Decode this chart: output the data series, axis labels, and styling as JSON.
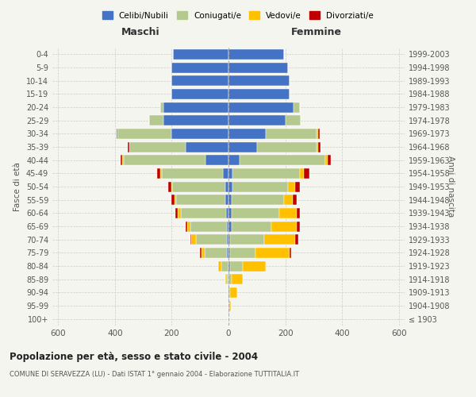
{
  "age_groups": [
    "100+",
    "95-99",
    "90-94",
    "85-89",
    "80-84",
    "75-79",
    "70-74",
    "65-69",
    "60-64",
    "55-59",
    "50-54",
    "45-49",
    "40-44",
    "35-39",
    "30-34",
    "25-29",
    "20-24",
    "15-19",
    "10-14",
    "5-9",
    "0-4"
  ],
  "birth_years": [
    "≤ 1903",
    "1904-1908",
    "1909-1913",
    "1914-1918",
    "1919-1923",
    "1924-1928",
    "1929-1933",
    "1934-1938",
    "1939-1943",
    "1944-1948",
    "1949-1953",
    "1954-1958",
    "1959-1963",
    "1964-1968",
    "1969-1973",
    "1974-1978",
    "1979-1983",
    "1984-1988",
    "1989-1993",
    "1994-1998",
    "1999-2003"
  ],
  "males": {
    "single": [
      0,
      0,
      0,
      0,
      0,
      5,
      5,
      5,
      8,
      10,
      12,
      20,
      80,
      150,
      200,
      230,
      230,
      200,
      200,
      200,
      195
    ],
    "married": [
      0,
      0,
      3,
      5,
      25,
      80,
      110,
      130,
      160,
      175,
      185,
      215,
      290,
      200,
      190,
      50,
      10,
      0,
      0,
      0,
      0
    ],
    "widowed": [
      0,
      0,
      0,
      5,
      10,
      10,
      15,
      10,
      10,
      5,
      5,
      5,
      5,
      0,
      0,
      0,
      0,
      0,
      0,
      0,
      0
    ],
    "divorced": [
      0,
      0,
      0,
      0,
      0,
      5,
      5,
      5,
      10,
      10,
      10,
      10,
      5,
      5,
      5,
      0,
      0,
      0,
      0,
      0,
      0
    ]
  },
  "females": {
    "single": [
      0,
      0,
      0,
      0,
      5,
      5,
      5,
      10,
      10,
      10,
      15,
      15,
      40,
      100,
      130,
      200,
      230,
      215,
      215,
      210,
      195
    ],
    "married": [
      0,
      2,
      5,
      10,
      45,
      90,
      120,
      140,
      170,
      185,
      195,
      235,
      300,
      210,
      180,
      55,
      20,
      0,
      0,
      0,
      0
    ],
    "widowed": [
      0,
      5,
      25,
      40,
      80,
      120,
      110,
      90,
      60,
      30,
      25,
      15,
      10,
      5,
      5,
      0,
      0,
      0,
      0,
      0,
      0
    ],
    "divorced": [
      0,
      0,
      0,
      0,
      0,
      5,
      10,
      10,
      10,
      15,
      15,
      20,
      10,
      10,
      5,
      0,
      0,
      0,
      0,
      0,
      0
    ]
  },
  "colors": {
    "single": "#4472c4",
    "married": "#b5c98e",
    "widowed": "#ffc000",
    "divorced": "#c00000"
  },
  "legend_labels": [
    "Celibi/Nubili",
    "Coniugati/e",
    "Vedovi/e",
    "Divorziati/e"
  ],
  "title": "Popolazione per età, sesso e stato civile - 2004",
  "subtitle": "COMUNE DI SERAVEZZA (LU) - Dati ISTAT 1° gennaio 2004 - Elaborazione TUTTITALIA.IT",
  "xlabel_left": "Maschi",
  "xlabel_right": "Femmine",
  "ylabel_left": "Fasce di età",
  "ylabel_right": "Anni di nascita",
  "xlim": 620,
  "background_color": "#f5f5f0"
}
